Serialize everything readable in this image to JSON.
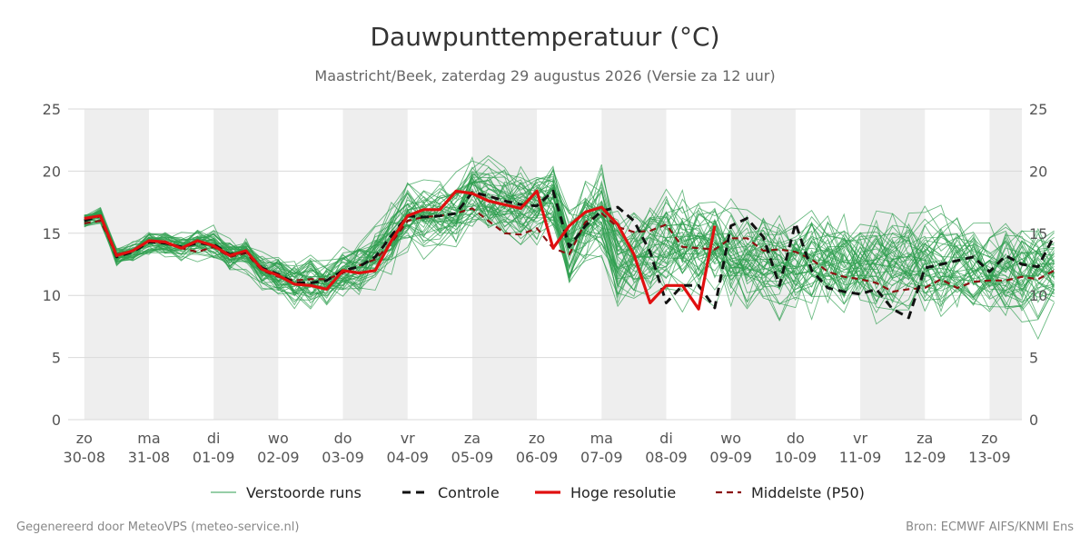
{
  "colors": {
    "ensemble": "#2e9e4f",
    "control": "#111111",
    "hires": "#e01010",
    "median": "#8b1010",
    "weekend_band": "#eeeeee",
    "grid": "#d9d9d9"
  },
  "footer": {
    "left": "Gegenereerd door MeteoVPS (meteo-service.nl)",
    "right": "Bron: ECMWF AIFS/KNMI Ens"
  },
  "chart_data": {
    "type": "line",
    "title": "Dauwpunttemperatuur (°C)",
    "subtitle": "Maastricht/Beek, zaterdag 29 augustus 2026 (Versie za 12 uur)",
    "x_unit": "days from start of 30-08",
    "xlim": [
      -0.25,
      14.5
    ],
    "ylim": [
      0,
      25
    ],
    "yticks": [
      0,
      5,
      10,
      15,
      20,
      25
    ],
    "grid": true,
    "legend_position": "bottom",
    "day_labels": [
      {
        "day": "zo",
        "date": "30-08"
      },
      {
        "day": "ma",
        "date": "31-08"
      },
      {
        "day": "di",
        "date": "01-09"
      },
      {
        "day": "wo",
        "date": "02-09"
      },
      {
        "day": "do",
        "date": "03-09"
      },
      {
        "day": "vr",
        "date": "04-09"
      },
      {
        "day": "za",
        "date": "05-09"
      },
      {
        "day": "zo",
        "date": "06-09"
      },
      {
        "day": "ma",
        "date": "07-09"
      },
      {
        "day": "di",
        "date": "08-09"
      },
      {
        "day": "wo",
        "date": "09-09"
      },
      {
        "day": "do",
        "date": "10-09"
      },
      {
        "day": "vr",
        "date": "11-09"
      },
      {
        "day": "za",
        "date": "12-09"
      },
      {
        "day": "zo",
        "date": "13-09"
      }
    ],
    "shaded_days": [
      0,
      2,
      4,
      6,
      8,
      10,
      12,
      14
    ],
    "x_step_days": 0.25,
    "series": [
      {
        "name": "Controle",
        "style": "dashed",
        "values": [
          16.0,
          16.4,
          13.1,
          13.5,
          14.3,
          14.2,
          13.9,
          14.2,
          14.1,
          13.3,
          13.5,
          12.2,
          11.7,
          11.0,
          11.0,
          11.2,
          12.0,
          12.3,
          13.1,
          14.8,
          16.4,
          16.3,
          16.4,
          16.6,
          18.3,
          18.0,
          17.6,
          17.3,
          17.2,
          18.4,
          13.9,
          15.6,
          16.8,
          17.1,
          16.0,
          13.5,
          9.4,
          10.8,
          10.8,
          9.0,
          15.6,
          16.2,
          14.7,
          10.8,
          15.8,
          12.0,
          10.6,
          10.3,
          10.1,
          10.5,
          8.9,
          8.2,
          12.2,
          12.5,
          12.8,
          13.1,
          11.9,
          13.2,
          12.5,
          12.3,
          14.8
        ]
      },
      {
        "name": "Hoge resolutie",
        "style": "solid",
        "values": [
          16.2,
          16.4,
          13.2,
          13.6,
          14.4,
          14.3,
          13.8,
          14.4,
          14.0,
          13.2,
          13.6,
          12.1,
          11.6,
          10.9,
          10.8,
          10.5,
          12.0,
          11.8,
          12.0,
          14.4,
          16.4,
          16.9,
          16.9,
          18.4,
          18.2,
          17.6,
          17.3,
          17.0,
          18.4,
          13.8,
          15.6,
          16.7,
          17.1,
          15.7,
          13.3,
          9.4,
          10.8,
          10.8,
          8.9,
          15.6
        ]
      },
      {
        "name": "Middelste (P50)",
        "style": "dashed",
        "values": [
          15.8,
          16.0,
          13.3,
          13.6,
          14.3,
          14.2,
          13.8,
          13.5,
          13.9,
          13.1,
          13.4,
          12.0,
          11.5,
          11.2,
          11.3,
          11.3,
          11.8,
          12.4,
          12.9,
          14.2,
          16.0,
          16.3,
          16.4,
          16.6,
          17.0,
          16.0,
          15.0,
          14.9,
          15.4,
          13.8,
          13.3,
          15.9,
          16.6,
          15.5,
          15.1,
          15.2,
          15.7,
          13.9,
          13.8,
          13.7,
          14.6,
          14.6,
          13.6,
          13.7,
          13.5,
          12.9,
          11.9,
          11.5,
          11.3,
          11.0,
          10.3,
          10.5,
          10.6,
          11.3,
          10.6,
          11.1,
          11.2,
          11.2,
          11.5,
          11.3,
          12.0
        ]
      },
      {
        "name": "Verstoorde runs",
        "style": "thin",
        "ensemble_members": 50
      }
    ]
  }
}
